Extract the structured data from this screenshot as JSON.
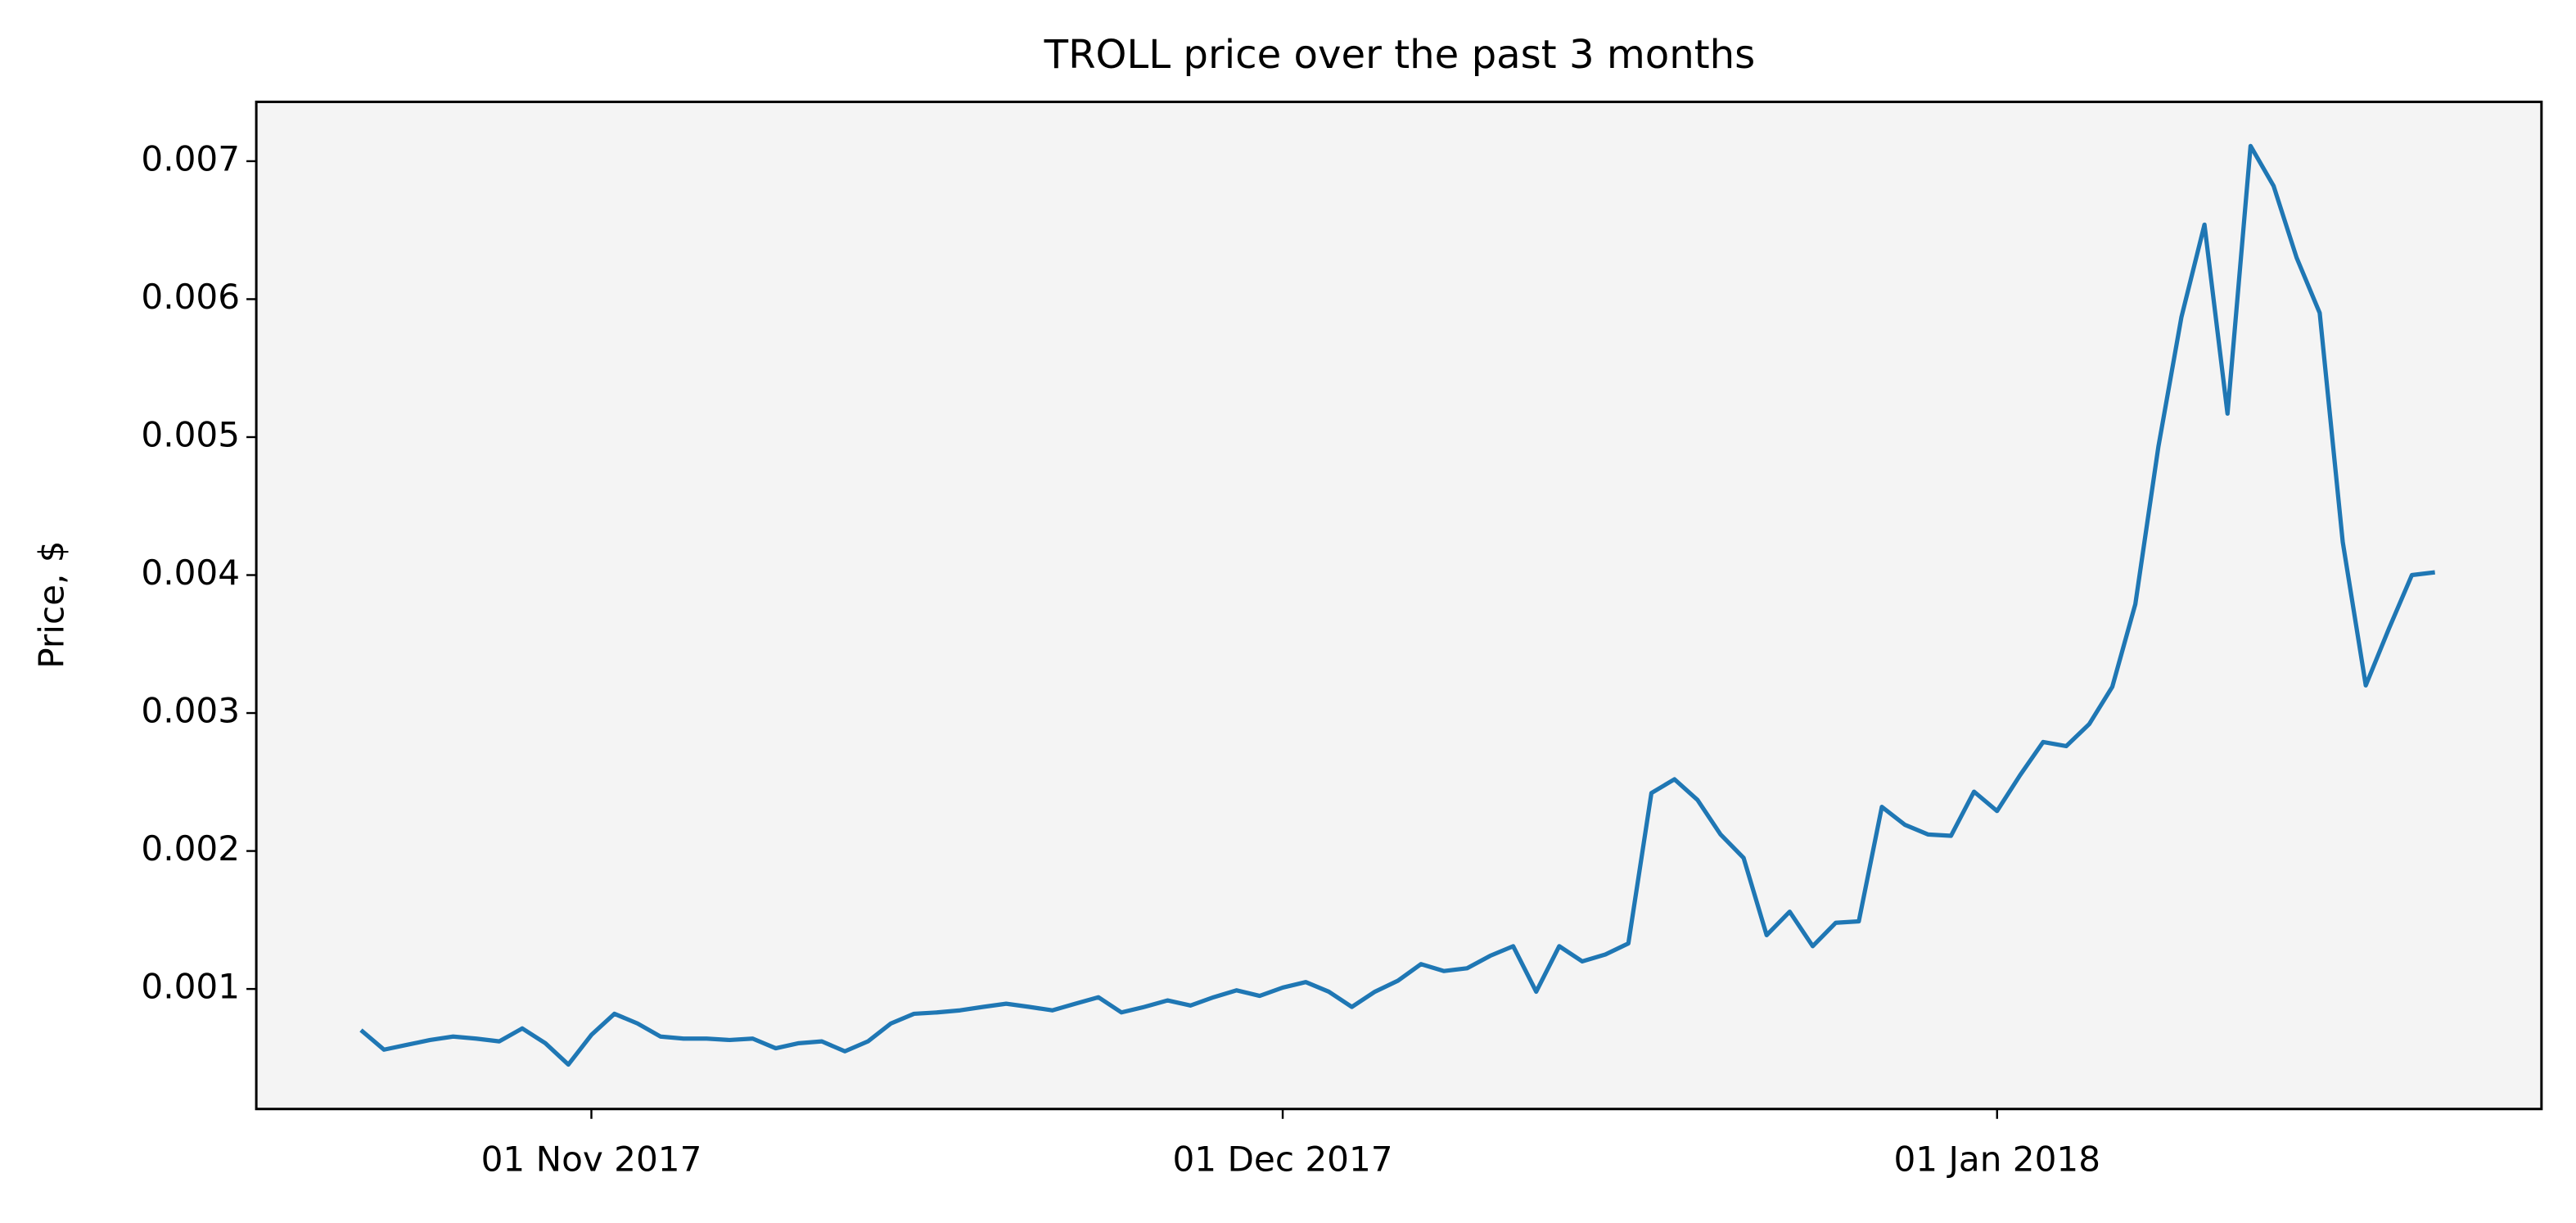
{
  "chart_data": {
    "type": "line",
    "title": "TROLL price over the past 3 months",
    "ylabel": "Price, $",
    "color": "#1f77b4",
    "background": "#f4f4f4",
    "x": [
      "2017-10-22",
      "2017-10-23",
      "2017-10-24",
      "2017-10-25",
      "2017-10-26",
      "2017-10-27",
      "2017-10-28",
      "2017-10-29",
      "2017-10-30",
      "2017-10-31",
      "2017-11-01",
      "2017-11-02",
      "2017-11-03",
      "2017-11-04",
      "2017-11-05",
      "2017-11-06",
      "2017-11-07",
      "2017-11-08",
      "2017-11-09",
      "2017-11-10",
      "2017-11-11",
      "2017-11-12",
      "2017-11-13",
      "2017-11-14",
      "2017-11-15",
      "2017-11-16",
      "2017-11-17",
      "2017-11-18",
      "2017-11-19",
      "2017-11-20",
      "2017-11-21",
      "2017-11-22",
      "2017-11-23",
      "2017-11-24",
      "2017-11-25",
      "2017-11-26",
      "2017-11-27",
      "2017-11-28",
      "2017-11-29",
      "2017-11-30",
      "2017-12-01",
      "2017-12-02",
      "2017-12-03",
      "2017-12-04",
      "2017-12-05",
      "2017-12-06",
      "2017-12-07",
      "2017-12-08",
      "2017-12-09",
      "2017-12-10",
      "2017-12-11",
      "2017-12-12",
      "2017-12-13",
      "2017-12-14",
      "2017-12-15",
      "2017-12-16",
      "2017-12-17",
      "2017-12-18",
      "2017-12-19",
      "2017-12-20",
      "2017-12-21",
      "2017-12-22",
      "2017-12-23",
      "2017-12-24",
      "2017-12-25",
      "2017-12-26",
      "2017-12-27",
      "2017-12-28",
      "2017-12-29",
      "2017-12-30",
      "2017-12-31",
      "2018-01-01",
      "2018-01-02",
      "2018-01-03",
      "2018-01-04",
      "2018-01-05",
      "2018-01-06",
      "2018-01-07",
      "2018-01-08",
      "2018-01-09",
      "2018-01-10",
      "2018-01-11",
      "2018-01-12",
      "2018-01-13",
      "2018-01-14",
      "2018-01-15",
      "2018-01-16",
      "2018-01-17",
      "2018-01-18",
      "2018-01-19",
      "2018-01-20"
    ],
    "values": [
      0.000702,
      0.00056,
      0.000595,
      0.00063,
      0.000655,
      0.00064,
      0.00062,
      0.000714,
      0.000607,
      0.000452,
      0.000667,
      0.00082,
      0.00075,
      0.000655,
      0.00064,
      0.00064,
      0.00063,
      0.00064,
      0.00057,
      0.000607,
      0.00062,
      0.000548,
      0.00062,
      0.00075,
      0.00082,
      0.00083,
      0.000845,
      0.00087,
      0.000893,
      0.00087,
      0.000845,
      0.000893,
      0.00094,
      0.00083,
      0.00087,
      0.000917,
      0.00088,
      0.00094,
      0.00099,
      0.00095,
      0.00101,
      0.00105,
      0.00098,
      0.00087,
      0.00098,
      0.00106,
      0.00118,
      0.00113,
      0.00115,
      0.00124,
      0.00131,
      0.00098,
      0.00131,
      0.0012,
      0.00125,
      0.00133,
      0.00242,
      0.00252,
      0.00237,
      0.00212,
      0.00195,
      0.00139,
      0.00156,
      0.00131,
      0.00148,
      0.00149,
      0.00232,
      0.00219,
      0.00212,
      0.00211,
      0.00243,
      0.00229,
      0.00255,
      0.00279,
      0.00276,
      0.00292,
      0.00319,
      0.00379,
      0.00493,
      0.00587,
      0.00654,
      0.00517,
      0.00711,
      0.00682,
      0.0063,
      0.0059,
      0.00424,
      0.0032,
      0.00361,
      0.004,
      0.00402
    ],
    "xlim": [
      "2017-10-17T11:00",
      "2018-01-24T15:00"
    ],
    "xticks": [
      {
        "value": "2017-11-01",
        "label": "01 Nov 2017"
      },
      {
        "value": "2017-12-01",
        "label": "01 Dec 2017"
      },
      {
        "value": "2018-01-01",
        "label": "01 Jan 2018"
      }
    ],
    "ylim": [
      0.00013,
      0.00743
    ],
    "yticks": [
      0.001,
      0.002,
      0.003,
      0.004,
      0.005,
      0.006,
      0.007
    ],
    "grid": false
  }
}
